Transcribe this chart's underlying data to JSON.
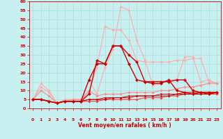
{
  "background_color": "#c8f0f0",
  "grid_color": "#aadddd",
  "xlabel": "Vent moyen/en rafales ( km/h )",
  "xlabel_color": "#cc0000",
  "ylabel_color": "#cc0000",
  "xlim": [
    -0.5,
    23.5
  ],
  "ylim": [
    0,
    60
  ],
  "yticks": [
    0,
    5,
    10,
    15,
    20,
    25,
    30,
    35,
    40,
    45,
    50,
    55,
    60
  ],
  "xticks": [
    0,
    1,
    2,
    3,
    4,
    5,
    6,
    7,
    8,
    9,
    10,
    11,
    12,
    13,
    14,
    15,
    16,
    17,
    18,
    19,
    20,
    21,
    22,
    23
  ],
  "series": [
    {
      "color": "#ffaaaa",
      "lw": 0.8,
      "marker": "D",
      "ms": 1.8,
      "data": [
        5,
        12,
        9,
        3,
        4,
        4,
        4,
        16,
        8,
        23,
        33,
        57,
        55,
        38,
        27,
        13,
        14,
        16,
        16,
        29,
        29,
        15,
        16,
        14
      ]
    },
    {
      "color": "#ffaaaa",
      "lw": 0.8,
      "marker": "D",
      "ms": 1.8,
      "data": [
        5,
        14,
        10,
        3,
        5,
        5,
        5,
        9,
        23,
        46,
        44,
        44,
        38,
        27,
        26,
        26,
        26,
        26,
        27,
        27,
        28,
        28,
        15,
        14
      ]
    },
    {
      "color": "#ff8888",
      "lw": 0.8,
      "marker": "D",
      "ms": 1.8,
      "data": [
        5,
        10,
        7,
        3,
        4,
        5,
        5,
        10,
        7,
        8,
        8,
        8,
        9,
        9,
        9,
        9,
        10,
        10,
        11,
        12,
        12,
        13,
        14,
        14
      ]
    },
    {
      "color": "#ee4444",
      "lw": 0.8,
      "marker": "D",
      "ms": 1.8,
      "data": [
        5,
        5,
        4,
        3,
        4,
        4,
        4,
        4,
        4,
        5,
        5,
        5,
        5,
        5,
        6,
        6,
        6,
        7,
        7,
        8,
        8,
        8,
        8,
        8
      ]
    },
    {
      "color": "#cc0000",
      "lw": 1.0,
      "marker": "D",
      "ms": 2.2,
      "data": [
        5,
        5,
        4,
        3,
        4,
        4,
        4,
        16,
        25,
        25,
        35,
        35,
        25,
        16,
        15,
        14,
        14,
        16,
        10,
        9,
        8,
        9,
        8,
        9
      ]
    },
    {
      "color": "#cc0000",
      "lw": 1.0,
      "marker": "D",
      "ms": 2.2,
      "data": [
        5,
        5,
        4,
        3,
        4,
        4,
        4,
        8,
        27,
        25,
        35,
        35,
        30,
        26,
        15,
        15,
        15,
        15,
        16,
        16,
        10,
        9,
        9,
        9
      ]
    },
    {
      "color": "#cc0000",
      "lw": 0.7,
      "marker": "D",
      "ms": 1.5,
      "data": [
        5,
        5,
        4,
        3,
        4,
        4,
        4,
        5,
        5,
        6,
        6,
        6,
        7,
        7,
        7,
        7,
        8,
        8,
        8,
        9,
        9,
        9,
        9,
        9
      ]
    },
    {
      "color": "#cc0000",
      "lw": 0.7,
      "marker": "D",
      "ms": 1.5,
      "data": [
        5,
        5,
        4,
        3,
        4,
        4,
        4,
        5,
        5,
        5,
        6,
        6,
        6,
        7,
        7,
        7,
        7,
        7,
        8,
        8,
        8,
        8,
        8,
        9
      ]
    }
  ],
  "arrow_chars": [
    "↗",
    "↗",
    "↑",
    "↙",
    "↙",
    "↙",
    "↙",
    "↘",
    "↓",
    "↓",
    "↓",
    "↓",
    "↓",
    "↓",
    "↓",
    "↓",
    "↓",
    "↓",
    "→",
    "→",
    "→",
    "→",
    "→",
    "→"
  ]
}
